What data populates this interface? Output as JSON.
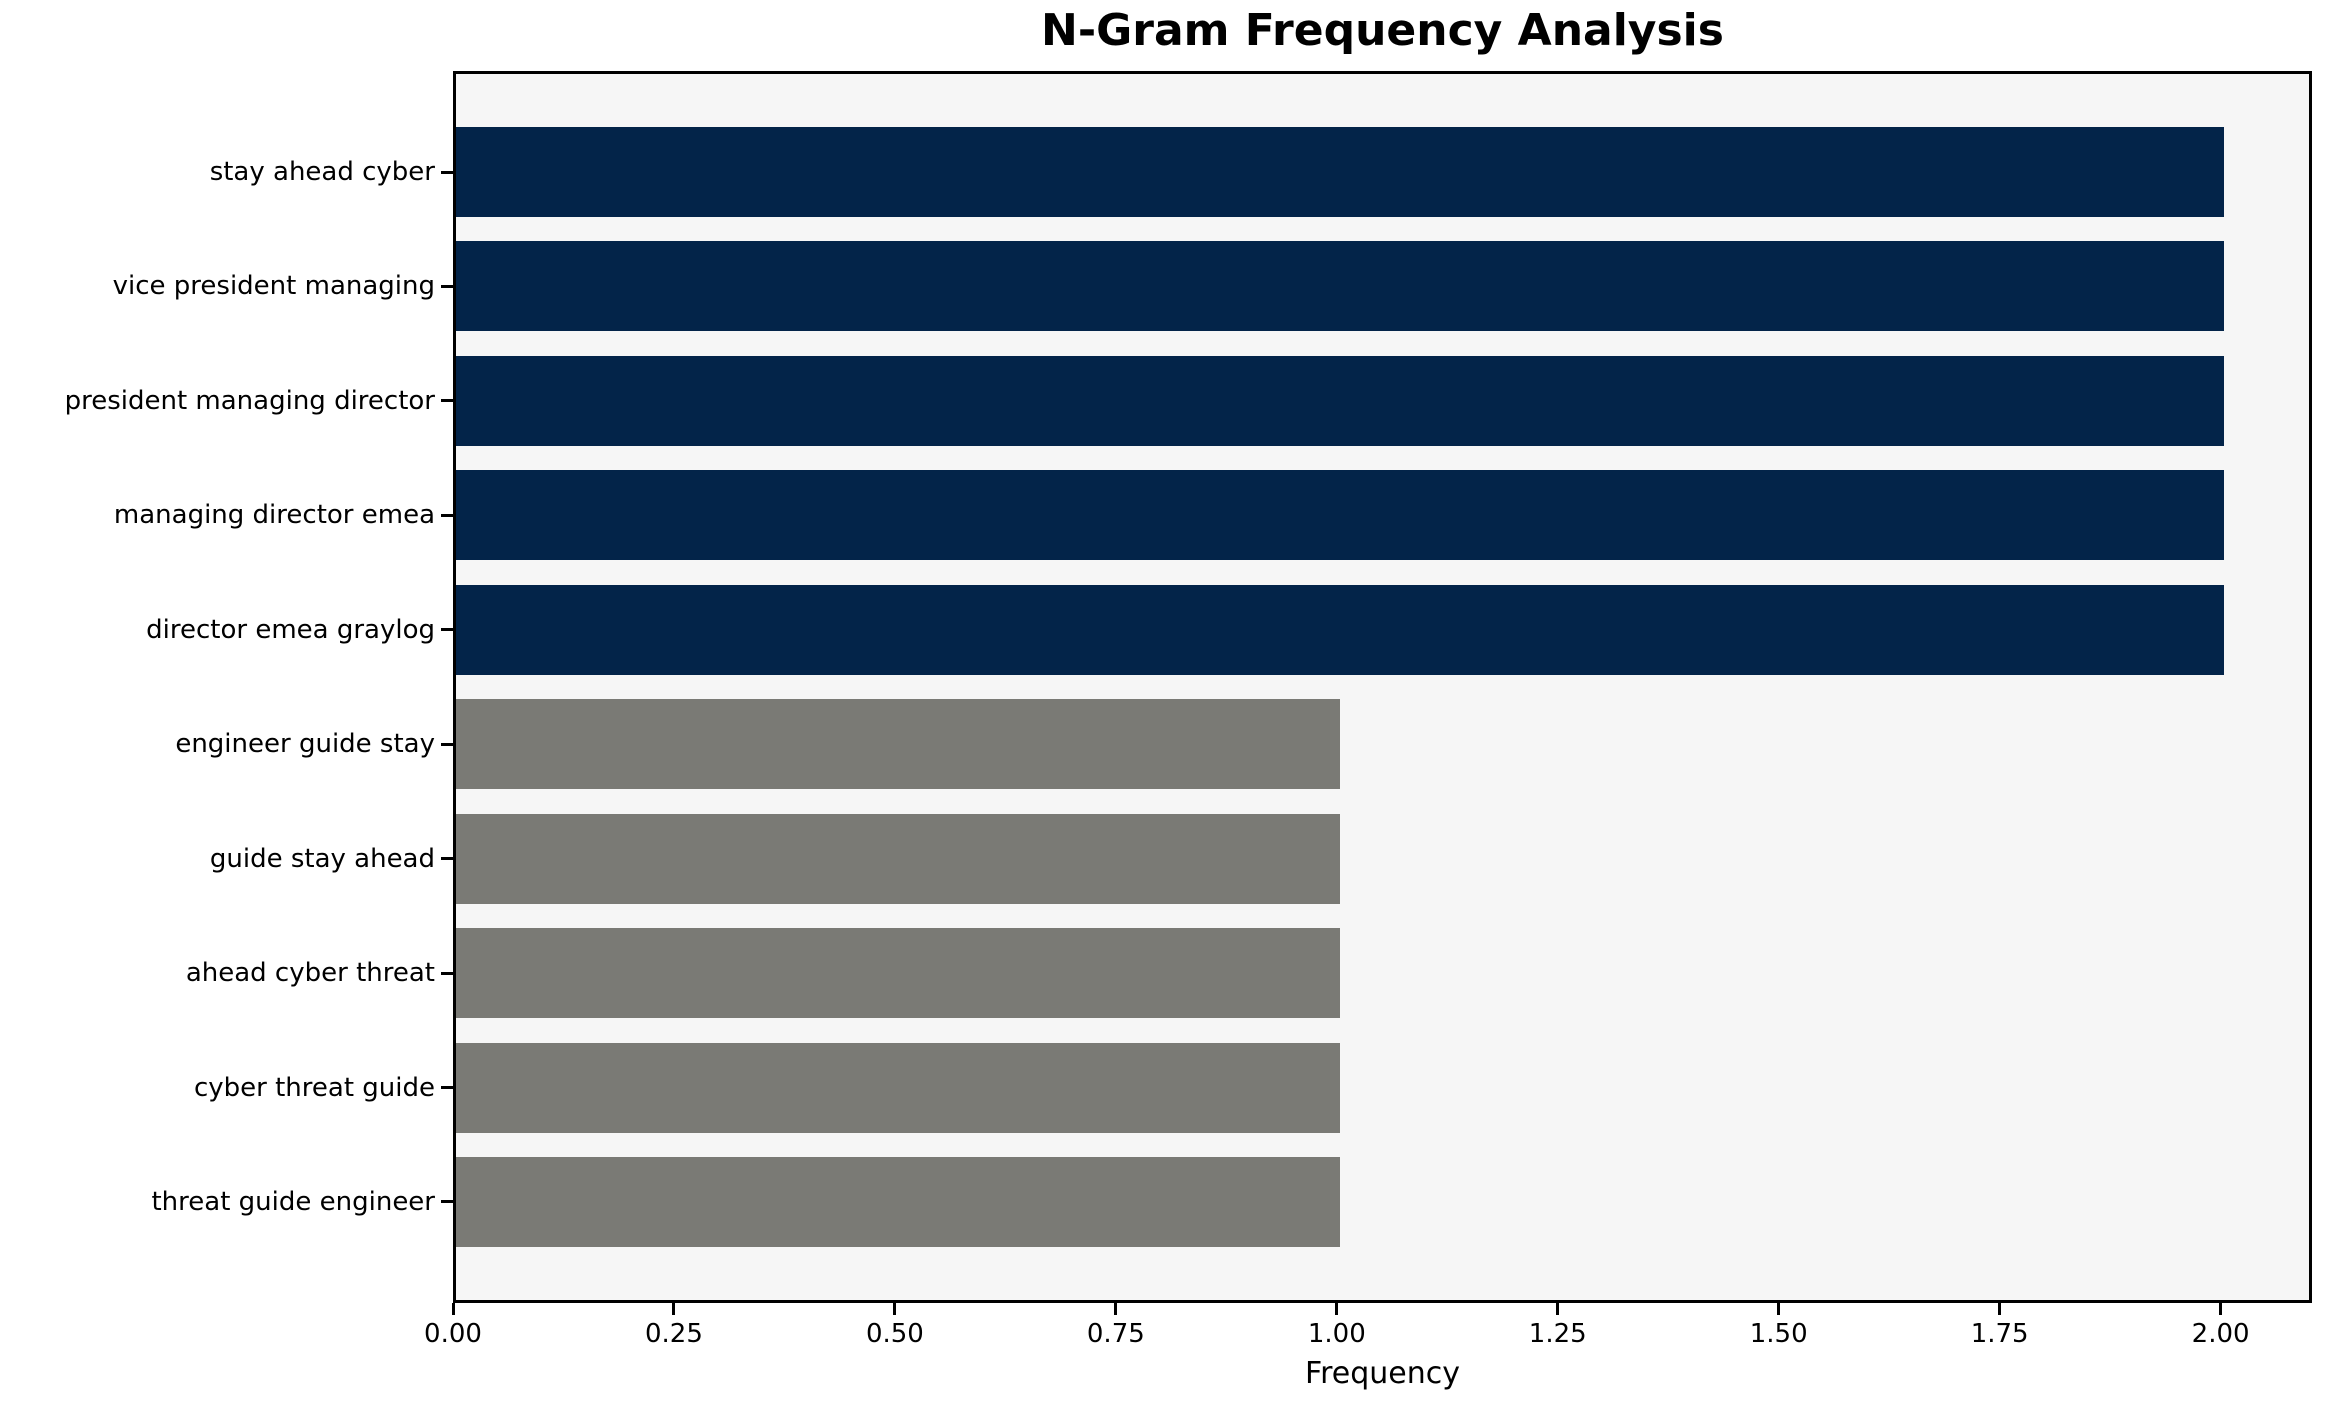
{
  "chart_data": {
    "type": "bar",
    "orientation": "horizontal",
    "title": "N-Gram Frequency Analysis",
    "xlabel": "Frequency",
    "categories": [
      "stay ahead cyber",
      "vice president managing",
      "president managing director",
      "managing director emea",
      "director emea graylog",
      "engineer guide stay",
      "guide stay ahead",
      "ahead cyber threat",
      "cyber threat guide",
      "threat guide engineer"
    ],
    "values": [
      2,
      2,
      2,
      2,
      2,
      1,
      1,
      1,
      1,
      1
    ],
    "bar_colors": [
      "#032449",
      "#032449",
      "#032449",
      "#032449",
      "#032449",
      "#7a7a75",
      "#7a7a75",
      "#7a7a75",
      "#7a7a75",
      "#7a7a75"
    ],
    "xticks": [
      "0.00",
      "0.25",
      "0.50",
      "0.75",
      "1.00",
      "1.25",
      "1.50",
      "1.75",
      "2.00"
    ],
    "xlim": [
      0,
      2.1
    ],
    "grid": false,
    "legend_position": "none",
    "plot_background": "#f6f6f6",
    "figure_background": "#ffffff",
    "spine_color": "#000000",
    "tick_color": "#000000",
    "text_color": "#000000"
  }
}
